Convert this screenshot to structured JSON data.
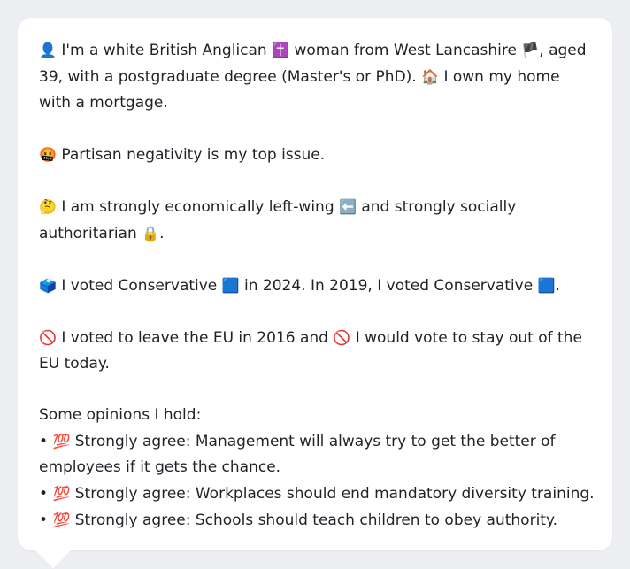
{
  "profile": {
    "identity": {
      "icon1": "👤",
      "text1": "I'm a white British Anglican",
      "icon2": "✝️",
      "text2": "woman from West Lancashire",
      "icon3": "🏴",
      "text3": ", aged 39, with a postgraduate degree (Master's or PhD).",
      "icon4": "🏠",
      "text4": "I own my home with a mortgage."
    },
    "issue": {
      "icon": "🤬",
      "text": "Partisan negativity is my top issue."
    },
    "ideology": {
      "icon1": "🤔",
      "text1": "I am strongly economically left-wing",
      "icon2": "⬅️",
      "text2": "and strongly socially authoritarian",
      "icon3": "🔒",
      "text3": "."
    },
    "votes": {
      "icon1": "🗳️",
      "text1": "I voted Conservative",
      "icon2": "🟦",
      "text2": "in 2024. In 2019, I voted Conservative",
      "icon3": "🟦",
      "text3": "."
    },
    "eu": {
      "icon1": "🚫",
      "text1": "I voted to leave the EU in 2016 and",
      "icon2": "🚫",
      "text2": "I would vote to stay out of the EU today."
    },
    "opinions": {
      "heading": "Some opinions I hold:",
      "items": [
        {
          "bullet": "•",
          "icon": "💯",
          "text": "Strongly agree: Management will always try to get the better of employees if it gets the chance."
        },
        {
          "bullet": "•",
          "icon": "💯",
          "text": "Strongly agree: Workplaces should end mandatory diversity training."
        },
        {
          "bullet": "•",
          "icon": "💯",
          "text": "Strongly agree: Schools should teach children to obey authority."
        }
      ]
    }
  }
}
